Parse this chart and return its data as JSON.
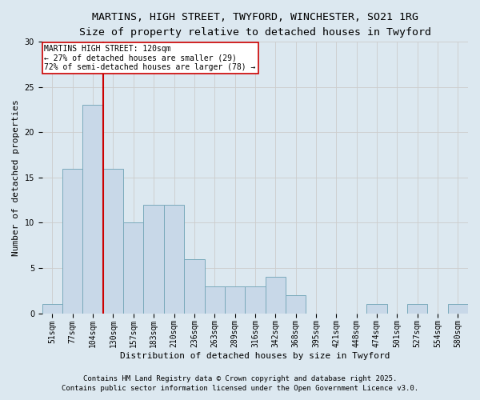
{
  "title1": "MARTINS, HIGH STREET, TWYFORD, WINCHESTER, SO21 1RG",
  "title2": "Size of property relative to detached houses in Twyford",
  "xlabel": "Distribution of detached houses by size in Twyford",
  "ylabel": "Number of detached properties",
  "categories": [
    "51sqm",
    "77sqm",
    "104sqm",
    "130sqm",
    "157sqm",
    "183sqm",
    "210sqm",
    "236sqm",
    "263sqm",
    "289sqm",
    "316sqm",
    "342sqm",
    "368sqm",
    "395sqm",
    "421sqm",
    "448sqm",
    "474sqm",
    "501sqm",
    "527sqm",
    "554sqm",
    "580sqm"
  ],
  "values": [
    1,
    16,
    23,
    16,
    10,
    12,
    12,
    6,
    3,
    3,
    3,
    4,
    2,
    0,
    0,
    0,
    1,
    0,
    1,
    0,
    1
  ],
  "bar_color": "#c8d8e8",
  "bar_edgecolor": "#7aaabb",
  "vline_color": "#cc0000",
  "annotation_line1": "MARTINS HIGH STREET: 120sqm",
  "annotation_line2": "← 27% of detached houses are smaller (29)",
  "annotation_line3": "72% of semi-detached houses are larger (78) →",
  "annotation_box_facecolor": "#ffffff",
  "annotation_box_edgecolor": "#cc0000",
  "ylim": [
    0,
    30
  ],
  "yticks": [
    0,
    5,
    10,
    15,
    20,
    25,
    30
  ],
  "grid_color": "#cccccc",
  "plot_bg_color": "#dce8f0",
  "fig_bg_color": "#dce8f0",
  "footnote1": "Contains HM Land Registry data © Crown copyright and database right 2025.",
  "footnote2": "Contains public sector information licensed under the Open Government Licence v3.0.",
  "title_fontsize": 9.5,
  "subtitle_fontsize": 9,
  "axis_label_fontsize": 8,
  "tick_fontsize": 7,
  "annotation_fontsize": 7,
  "footnote_fontsize": 6.5
}
